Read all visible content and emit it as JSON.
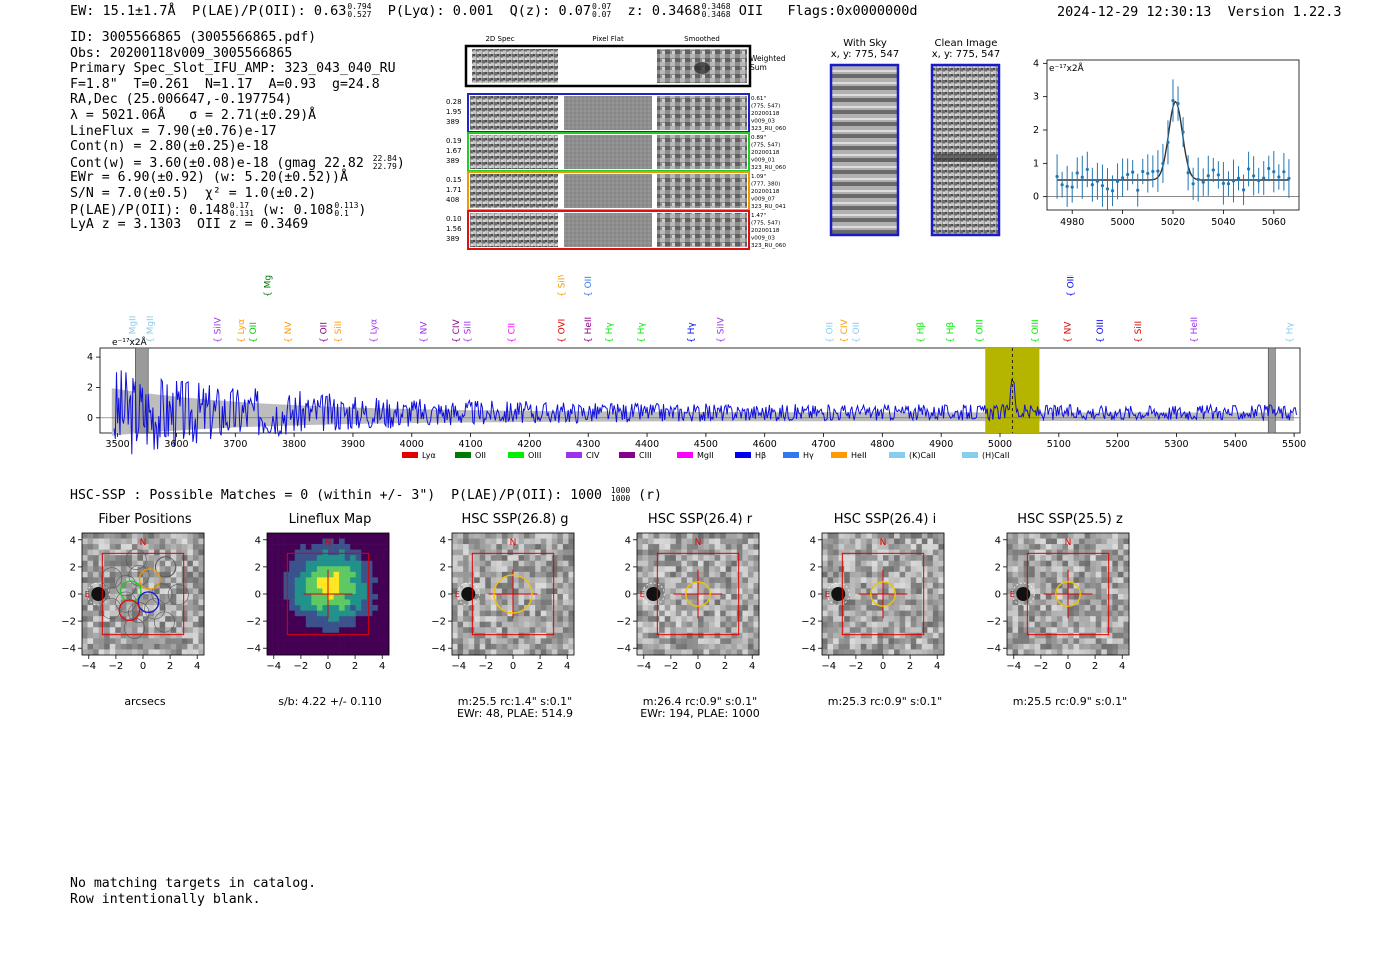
{
  "header": {
    "ew": "EW: 15.1±1.7Å",
    "plae_label": "P(LAE)/P(OII): 0.63",
    "plae_hi": "0.794",
    "plae_lo": "0.527",
    "plya": "P(Lyα): 0.001",
    "q_label": "Q(z): 0.07",
    "q_hi": "0.07",
    "q_lo": "0.07",
    "z_label": "z: 0.3468",
    "z_hi": "0.3468",
    "z_lo": "0.3468",
    "z_line": "OII",
    "flags": "Flags:0x0000000d",
    "timestamp": "2024-12-29 12:30:13",
    "version": "Version 1.22.3"
  },
  "info": {
    "id": "ID: 3005566865 (3005566865.pdf)",
    "obs": "Obs: 20200118v009_3005566865",
    "primary": "Primary Spec_Slot_IFU_AMP: 323_043_040_RU",
    "fiber": "F=1.8\"  T=0.261  N=1.17  A=0.93  g=24.8",
    "radec": "RA,Dec (25.006647,-0.197754)",
    "lambda": "λ = 5021.06Å   σ = 2.71(±0.29)Å",
    "lineflux": "LineFlux = 7.90(±0.76)e-17",
    "contn": "Cont(n) = 2.80(±0.25)e-18",
    "contw": "Cont(w) = 3.60(±0.08)e-18 (gmag 22.82",
    "contw_hi": "22.84",
    "contw_lo": "22.79",
    "contw_end": ")",
    "ewr": "EWr = 6.90(±0.92) (w: 5.20(±0.52))Å",
    "sn": "S/N = 7.0(±0.5)  χ² = 1.0(±0.2)",
    "plae": "P(LAE)/P(OII): 0.148",
    "plae_hi": "0.17",
    "plae_lo": "0.131",
    "plae_w": "(w: 0.108",
    "plae_w_hi": "0.113",
    "plae_w_lo": "0.1",
    "plae_end": ")",
    "lya": "LyA z = 3.1303  OII z = 0.3469"
  },
  "cutouts": {
    "col_2d": "2D Spec",
    "col_flat": "Pixel Flat",
    "col_smooth": "Smoothed",
    "weighted": [
      "Weighted",
      "Sum"
    ],
    "rows": [
      {
        "left": [
          "0.28",
          "1.95",
          "389"
        ],
        "right": [
          "0.61\"",
          "(775, 547)",
          "20200118",
          "v009_03",
          "323_RU_060"
        ],
        "color": "#2222cc"
      },
      {
        "left": [
          "0.19",
          "1.67",
          "389"
        ],
        "right": [
          "0.89\"",
          "(775, 547)",
          "20200118",
          "v009_01",
          "323_RU_060"
        ],
        "color": "#22cc22"
      },
      {
        "left": [
          "0.15",
          "1.71",
          "408"
        ],
        "right": [
          "1.09\"",
          "(777, 380)",
          "20200118",
          "v009_07",
          "323_RU_041"
        ],
        "color": "#ee9900"
      },
      {
        "left": [
          "0.10",
          "1.56",
          "389"
        ],
        "right": [
          "1.47\"",
          "(775, 547)",
          "20200118",
          "v009_03",
          "323_RU_060"
        ],
        "color": "#dd1111"
      }
    ]
  },
  "sky": {
    "with_sky": "With Sky",
    "with_sky_xy": "x, y: 775, 547",
    "clean": "Clean Image",
    "clean_xy": "x, y: 775, 547"
  },
  "zoom_chart": {
    "unit": "e⁻¹⁷x2Å",
    "x_ticks": [
      "4980",
      "5000",
      "5020",
      "5040",
      "5060"
    ],
    "y_ticks": [
      "0",
      "1",
      "2",
      "3",
      "4"
    ]
  },
  "spectrum": {
    "unit": "e⁻¹⁷x2Å",
    "x_ticks": [
      "3500",
      "3600",
      "3700",
      "3800",
      "3900",
      "4000",
      "4100",
      "4200",
      "4300",
      "4400",
      "4500",
      "4600",
      "4700",
      "4800",
      "4900",
      "5000",
      "5100",
      "5200",
      "5300",
      "5400",
      "5500"
    ],
    "y_ticks": [
      "0",
      "2",
      "4"
    ],
    "legend": [
      {
        "label": "Lyα",
        "color": "#e00000"
      },
      {
        "label": "OII",
        "color": "#007a00"
      },
      {
        "label": "OIII",
        "color": "#00ee00"
      },
      {
        "label": "CIV",
        "color": "#9933ee"
      },
      {
        "label": "CIII",
        "color": "#880088"
      },
      {
        "label": "MgII",
        "color": "#ff00ff"
      },
      {
        "label": "Hβ",
        "color": "#0000ee"
      },
      {
        "label": "Hγ",
        "color": "#3377ee"
      },
      {
        "label": "HeII",
        "color": "#ff9900"
      },
      {
        "label": "(K)CaII",
        "color": "#88ccee"
      },
      {
        "label": "(H)CaII",
        "color": "#88ccee"
      }
    ],
    "line_labels": [
      {
        "t": "MgII",
        "w": 3530,
        "c": "#88ccee",
        "row": 1
      },
      {
        "t": "MgII",
        "w": 3560,
        "c": "#88ccee",
        "row": 1
      },
      {
        "t": "SiIV",
        "w": 3675,
        "c": "#9933ee",
        "row": 1
      },
      {
        "t": "Lyα",
        "w": 3715,
        "c": "#ff9900",
        "row": 1
      },
      {
        "t": "OII",
        "w": 3735,
        "c": "#00cc00",
        "row": 1
      },
      {
        "t": "MgII",
        "w": 3760,
        "c": "#007a00",
        "row": 0
      },
      {
        "t": "NV",
        "w": 3795,
        "c": "#ff9900",
        "row": 1
      },
      {
        "t": "OII",
        "w": 3855,
        "c": "#880088",
        "row": 1
      },
      {
        "t": "SiII",
        "w": 3880,
        "c": "#ff9900",
        "row": 1
      },
      {
        "t": "Lyα",
        "w": 3940,
        "c": "#9933ee",
        "row": 1
      },
      {
        "t": "NV",
        "w": 4025,
        "c": "#9933ee",
        "row": 1
      },
      {
        "t": "CIV",
        "w": 4080,
        "c": "#880088",
        "row": 1
      },
      {
        "t": "SiII",
        "w": 4100,
        "c": "#9933ee",
        "row": 1
      },
      {
        "t": "CII",
        "w": 4175,
        "c": "#ff00ff",
        "row": 1
      },
      {
        "t": "SiIV",
        "w": 4260,
        "c": "#ff9900",
        "row": 0
      },
      {
        "t": "OVI",
        "w": 4260,
        "c": "#e00000",
        "row": 1
      },
      {
        "t": "OII",
        "w": 4305,
        "c": "#3377ee",
        "row": 0
      },
      {
        "t": "HeII",
        "w": 4305,
        "c": "#880088",
        "row": 1
      },
      {
        "t": "Hγ",
        "w": 4340,
        "c": "#00ee00",
        "row": 1
      },
      {
        "t": "Hγ",
        "w": 4395,
        "c": "#00ee00",
        "row": 1
      },
      {
        "t": "Hγ",
        "w": 4480,
        "c": "#0000ee",
        "row": 1
      },
      {
        "t": "SiIV",
        "w": 4530,
        "c": "#9933ee",
        "row": 1
      },
      {
        "t": "OII",
        "w": 4715,
        "c": "#88ccee",
        "row": 1
      },
      {
        "t": "CIV",
        "w": 4740,
        "c": "#ff9900",
        "row": 1
      },
      {
        "t": "OII",
        "w": 4760,
        "c": "#88ccee",
        "row": 1
      },
      {
        "t": "Hβ",
        "w": 4870,
        "c": "#00ee00",
        "row": 1
      },
      {
        "t": "Hβ",
        "w": 4920,
        "c": "#00ee00",
        "row": 1
      },
      {
        "t": "OIII",
        "w": 4970,
        "c": "#00ee00",
        "row": 1
      },
      {
        "t": "OIII",
        "w": 5065,
        "c": "#00ee00",
        "row": 1
      },
      {
        "t": "NV",
        "w": 5120,
        "c": "#e00000",
        "row": 1
      },
      {
        "t": "OIII",
        "w": 5125,
        "c": "#0000ee",
        "row": 0
      },
      {
        "t": "OIII",
        "w": 5175,
        "c": "#0000ee",
        "row": 1
      },
      {
        "t": "SiII",
        "w": 5240,
        "c": "#e00000",
        "row": 1
      },
      {
        "t": "HeII",
        "w": 5335,
        "c": "#9933ee",
        "row": 1
      },
      {
        "t": "Hγ",
        "w": 5497,
        "c": "#88ccee",
        "row": 1
      }
    ]
  },
  "hsc": {
    "summary": "HSC-SSP : Possible Matches = 0 (within +/- 3\")  P(LAE)/P(OII): 1000",
    "summary_hi": "1000",
    "summary_lo": "1000",
    "summary_end": "(r)",
    "panels": [
      {
        "title": "Fiber Positions",
        "sub1": "arcsecs",
        "sub2": ""
      },
      {
        "title": "Lineflux Map",
        "sub1": "s/b: 4.22 +/- 0.110",
        "sub2": ""
      },
      {
        "title": "HSC SSP(26.8) g",
        "sub1": "m:25.5 rc:1.4\"  s:0.1\"",
        "sub2": "EWr: 48, PLAE: 514.9"
      },
      {
        "title": "HSC SSP(26.4) r",
        "sub1": "m:26.4 rc:0.9\"  s:0.1\"",
        "sub2": "EWr: 194, PLAE: 1000"
      },
      {
        "title": "HSC SSP(26.4) i",
        "sub1": "m:25.3 rc:0.9\"  s:0.1\"",
        "sub2": ""
      },
      {
        "title": "HSC SSP(25.5) z",
        "sub1": "m:25.5 rc:0.9\"  s:0.1\"",
        "sub2": ""
      }
    ],
    "ticks": [
      "−4",
      "−2",
      "0",
      "2",
      "4"
    ],
    "north": "N",
    "east": "E"
  },
  "footer": {
    "line1": "No matching targets in catalog.",
    "line2": "Row intentionally blank."
  }
}
